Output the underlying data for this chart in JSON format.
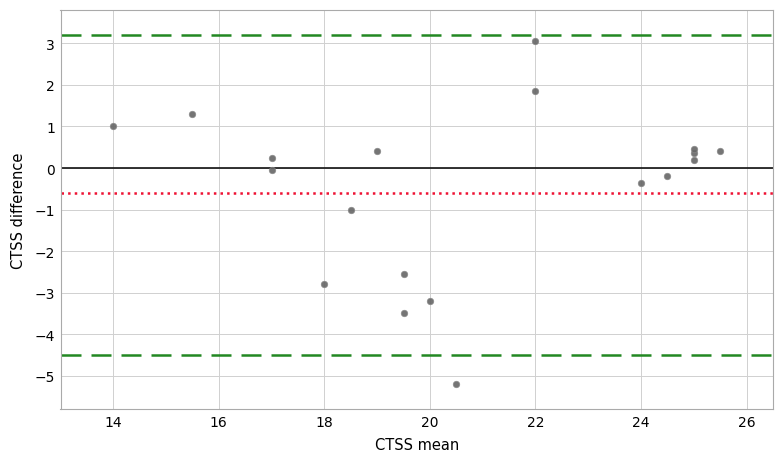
{
  "x": [
    14.0,
    15.5,
    17.0,
    17.0,
    18.0,
    18.5,
    19.0,
    19.5,
    19.5,
    20.0,
    20.5,
    22.0,
    22.0,
    24.0,
    24.5,
    25.0,
    25.0,
    25.0,
    25.5
  ],
  "y": [
    1.0,
    1.3,
    0.25,
    -0.05,
    -2.8,
    -1.0,
    0.4,
    -2.55,
    -3.5,
    -3.2,
    -5.2,
    3.05,
    1.85,
    -0.35,
    -0.2,
    0.2,
    0.35,
    0.45,
    0.4
  ],
  "mean_line": 0.0,
  "bias_line": -0.6,
  "upper_loa": 3.2,
  "lower_loa": -4.5,
  "xlim": [
    13.0,
    26.5
  ],
  "ylim": [
    -5.8,
    3.8
  ],
  "xticks": [
    14,
    16,
    18,
    20,
    22,
    24,
    26
  ],
  "yticks": [
    -5,
    -4,
    -3,
    -2,
    -1,
    0,
    1,
    2,
    3
  ],
  "xlabel": "CTSS mean",
  "ylabel": "CTSS difference",
  "dot_color": "#666666",
  "dot_edgecolor": "#888888",
  "mean_line_color": "#111111",
  "bias_line_color": "#ee1133",
  "loa_line_color": "#228822",
  "grid_color": "#d0d0d0",
  "bg_color": "#ffffff",
  "spine_color": "#aaaaaa"
}
